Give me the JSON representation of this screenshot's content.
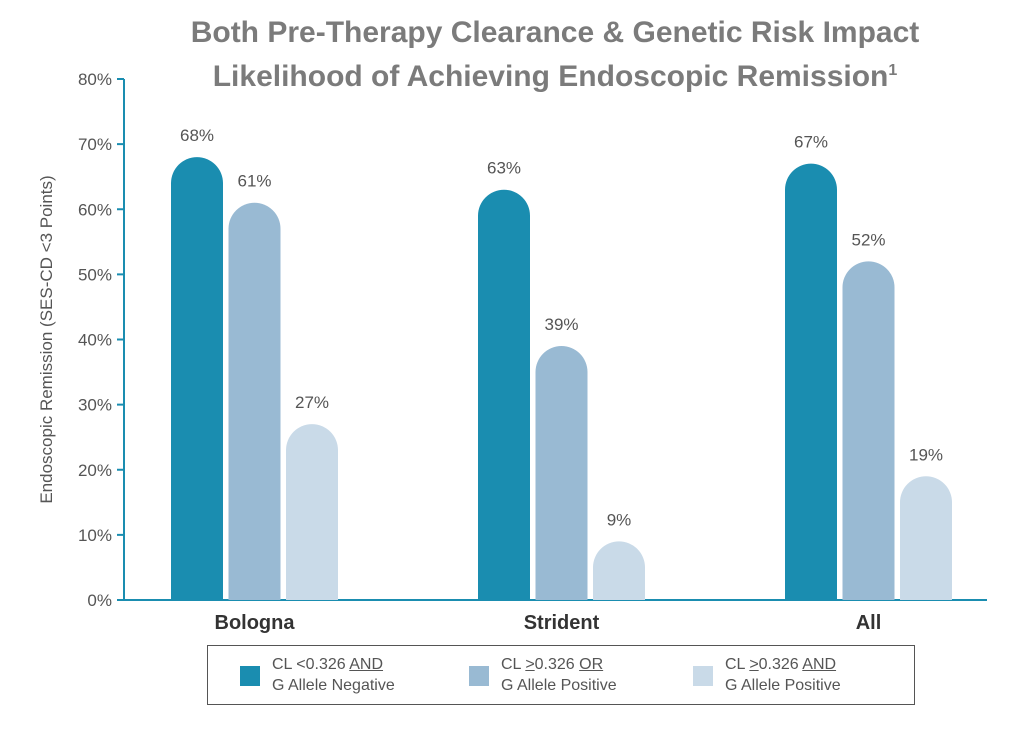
{
  "title_line1": "Both Pre-Therapy Clearance & Genetic Risk Impact",
  "title_line2": "Likelihood of Achieving Endoscopic Remission",
  "title_sup": "1",
  "chart_data": {
    "type": "bar",
    "categories": [
      "Bologna",
      "Strident",
      "All"
    ],
    "series": [
      {
        "values": [
          68,
          63,
          67
        ],
        "color": "#1a8db0"
      },
      {
        "values": [
          61,
          39,
          52
        ],
        "color": "#99bad3"
      },
      {
        "values": [
          27,
          9,
          19
        ],
        "color": "#c9dae8"
      }
    ],
    "data_labels": [
      [
        "68%",
        "63%",
        "67%"
      ],
      [
        "61%",
        "39%",
        "52%"
      ],
      [
        "27%",
        "9%",
        "19%"
      ]
    ],
    "ylabel": "Endoscopic Remission (SES-CD <3 Points)",
    "ylim": [
      0,
      80
    ],
    "yticks": [
      "0%",
      "10%",
      "20%",
      "30%",
      "40%",
      "50%",
      "60%",
      "70%",
      "80%"
    ],
    "axis_color": "#1a8db0",
    "grid": false,
    "legend_position": "bottom"
  },
  "legend": [
    {
      "line1_pre": "CL <0.326 ",
      "line1_u": "AND",
      "line2": "G Allele Negative",
      "color": "#1a8db0"
    },
    {
      "line1_pre": "CL ",
      "line1_u": ">",
      "line1_post": "0.326 ",
      "line1_u2": "OR",
      "line2": "G Allele Positive",
      "color": "#99bad3"
    },
    {
      "line1_pre": "CL ",
      "line1_u": ">",
      "line1_post": "0.326 ",
      "line1_u2": "AND",
      "line2": "G Allele Positive",
      "color": "#c9dae8"
    }
  ]
}
